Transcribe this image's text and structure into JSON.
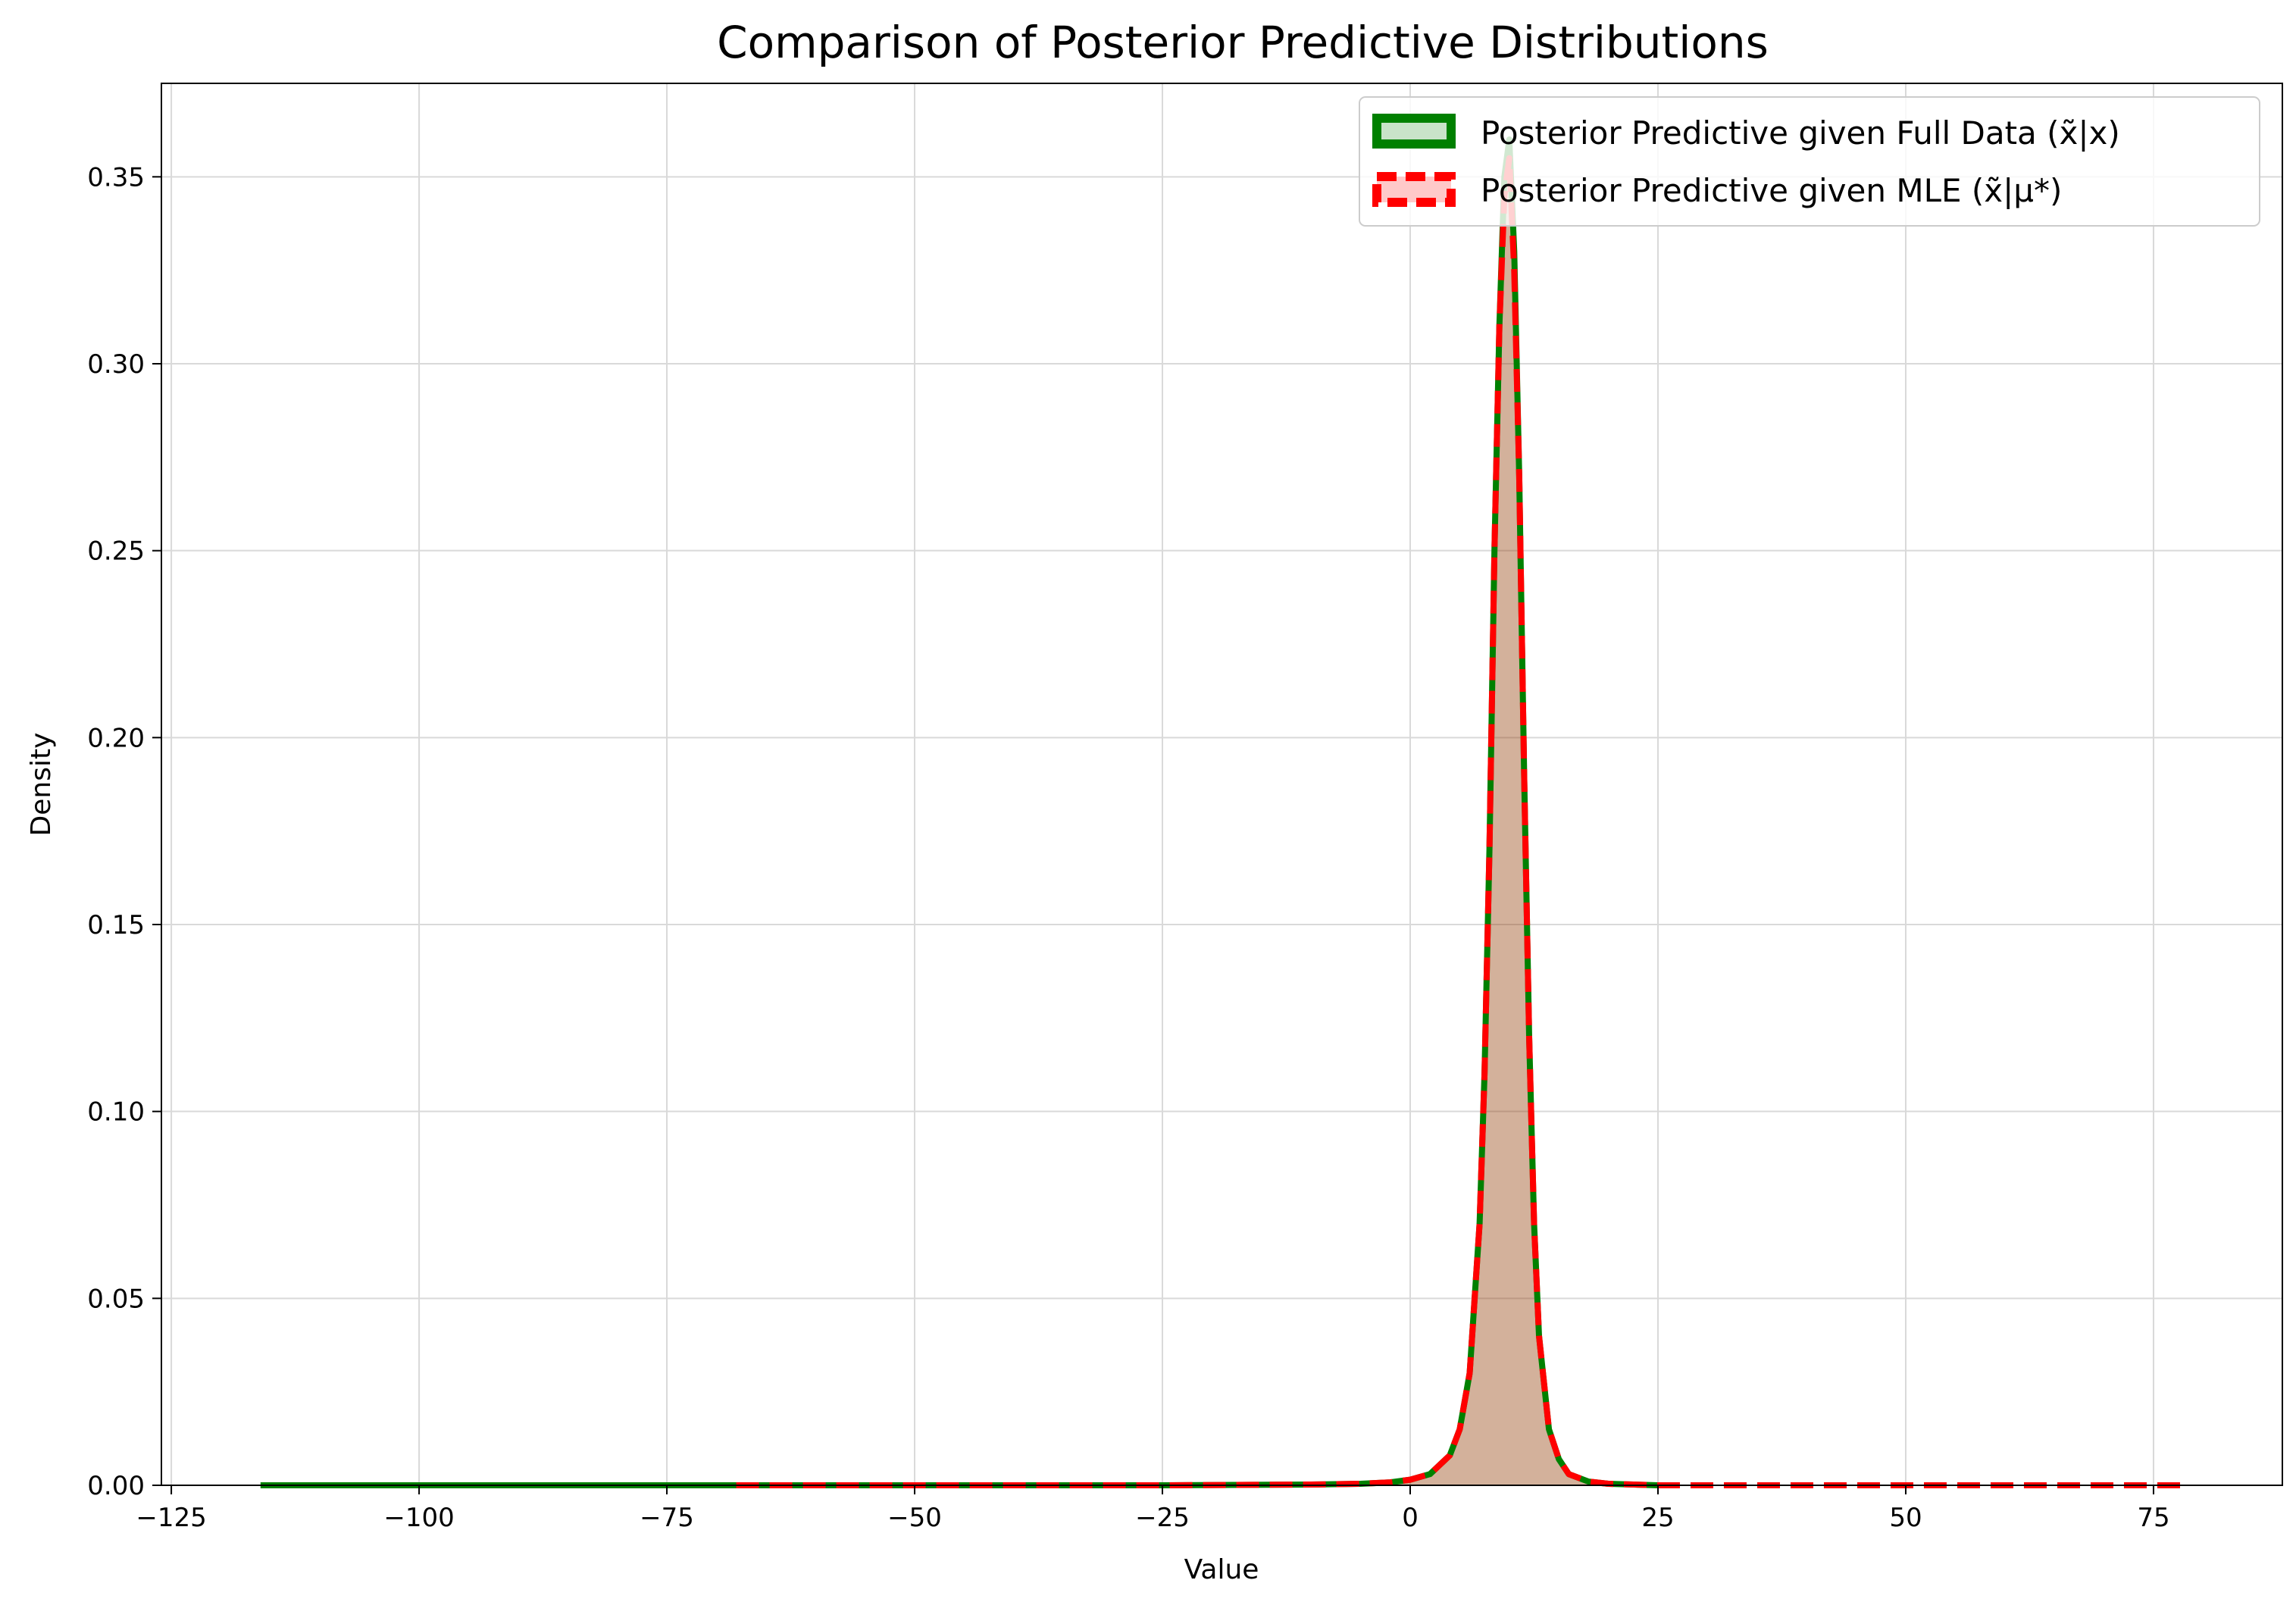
{
  "chart_data": {
    "type": "area",
    "title": "Comparison of Posterior Predictive Distributions",
    "xlabel": "Value",
    "ylabel": "Density",
    "xlim": [
      -126,
      88
    ],
    "ylim": [
      0,
      0.375
    ],
    "xticks": [
      -125,
      -100,
      -75,
      -50,
      -25,
      0,
      25,
      50,
      75
    ],
    "xtick_labels": [
      "−125",
      "−100",
      "−75",
      "−50",
      "−25",
      "0",
      "25",
      "50",
      "75"
    ],
    "yticks": [
      0,
      0.05,
      0.1,
      0.15,
      0.2,
      0.25,
      0.3,
      0.35
    ],
    "ytick_labels": [
      "0.00",
      "0.05",
      "0.10",
      "0.15",
      "0.20",
      "0.25",
      "0.30",
      "0.35"
    ],
    "grid": true,
    "legend_position": "top-right",
    "series": [
      {
        "name": "Posterior Predictive given Full Data (x̃|x)",
        "color": "#008000",
        "fill_color": "#c9e3c9",
        "line_style": "solid",
        "x": [
          -116,
          -100,
          -75,
          -50,
          -25,
          -10,
          -5,
          -2,
          0,
          2,
          4,
          5,
          6,
          7,
          7.5,
          8,
          8.5,
          9,
          9.5,
          10,
          10.5,
          11,
          11.5,
          12,
          12.5,
          13,
          14,
          15,
          16,
          18,
          20,
          25
        ],
        "y": [
          0,
          0,
          0,
          0,
          0,
          0.0002,
          0.0004,
          0.0008,
          0.0015,
          0.003,
          0.008,
          0.015,
          0.03,
          0.07,
          0.11,
          0.17,
          0.25,
          0.31,
          0.35,
          0.36,
          0.33,
          0.27,
          0.19,
          0.12,
          0.07,
          0.04,
          0.015,
          0.007,
          0.003,
          0.001,
          0.0004,
          0
        ]
      },
      {
        "name": "Posterior Predictive given MLE (x̃|μ*)",
        "color": "#ff0000",
        "fill_color": "#ffc9c9",
        "line_style": "dashed",
        "x": [
          -68,
          -50,
          -25,
          -10,
          -5,
          -2,
          0,
          2,
          4,
          5,
          6,
          7,
          7.5,
          8,
          8.5,
          9,
          9.5,
          10,
          10.5,
          11,
          11.5,
          12,
          12.5,
          13,
          14,
          15,
          16,
          18,
          20,
          25,
          50,
          78
        ],
        "y": [
          0,
          0,
          0,
          0.0002,
          0.0004,
          0.0008,
          0.0015,
          0.003,
          0.008,
          0.015,
          0.03,
          0.07,
          0.11,
          0.17,
          0.25,
          0.31,
          0.345,
          0.355,
          0.325,
          0.27,
          0.19,
          0.12,
          0.07,
          0.04,
          0.015,
          0.007,
          0.003,
          0.001,
          0.0004,
          0,
          0,
          0
        ]
      }
    ]
  }
}
